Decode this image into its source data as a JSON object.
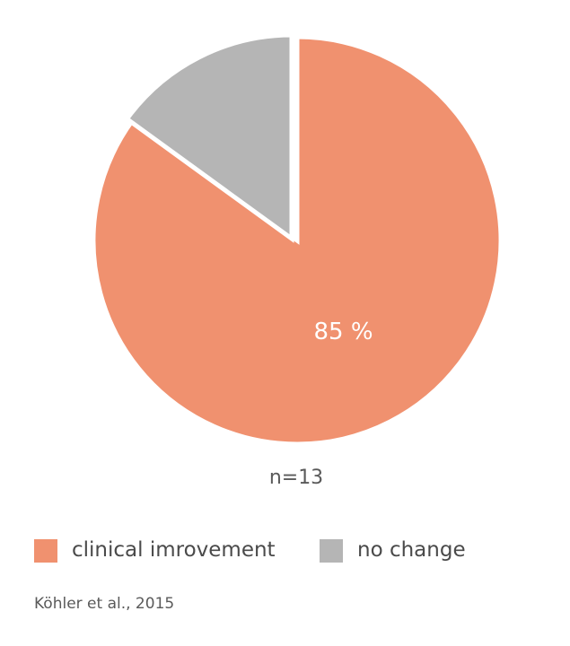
{
  "chart_data": {
    "type": "pie",
    "series": [
      {
        "name": "clinical imrovement",
        "value": 85,
        "color": "#f0916f",
        "label": "85 %"
      },
      {
        "name": "no change",
        "value": 15,
        "color": "#b5b5b5",
        "label": ""
      }
    ],
    "note": "n=13",
    "source": "Köhler et al., 2015",
    "legend_position": "bottom"
  }
}
